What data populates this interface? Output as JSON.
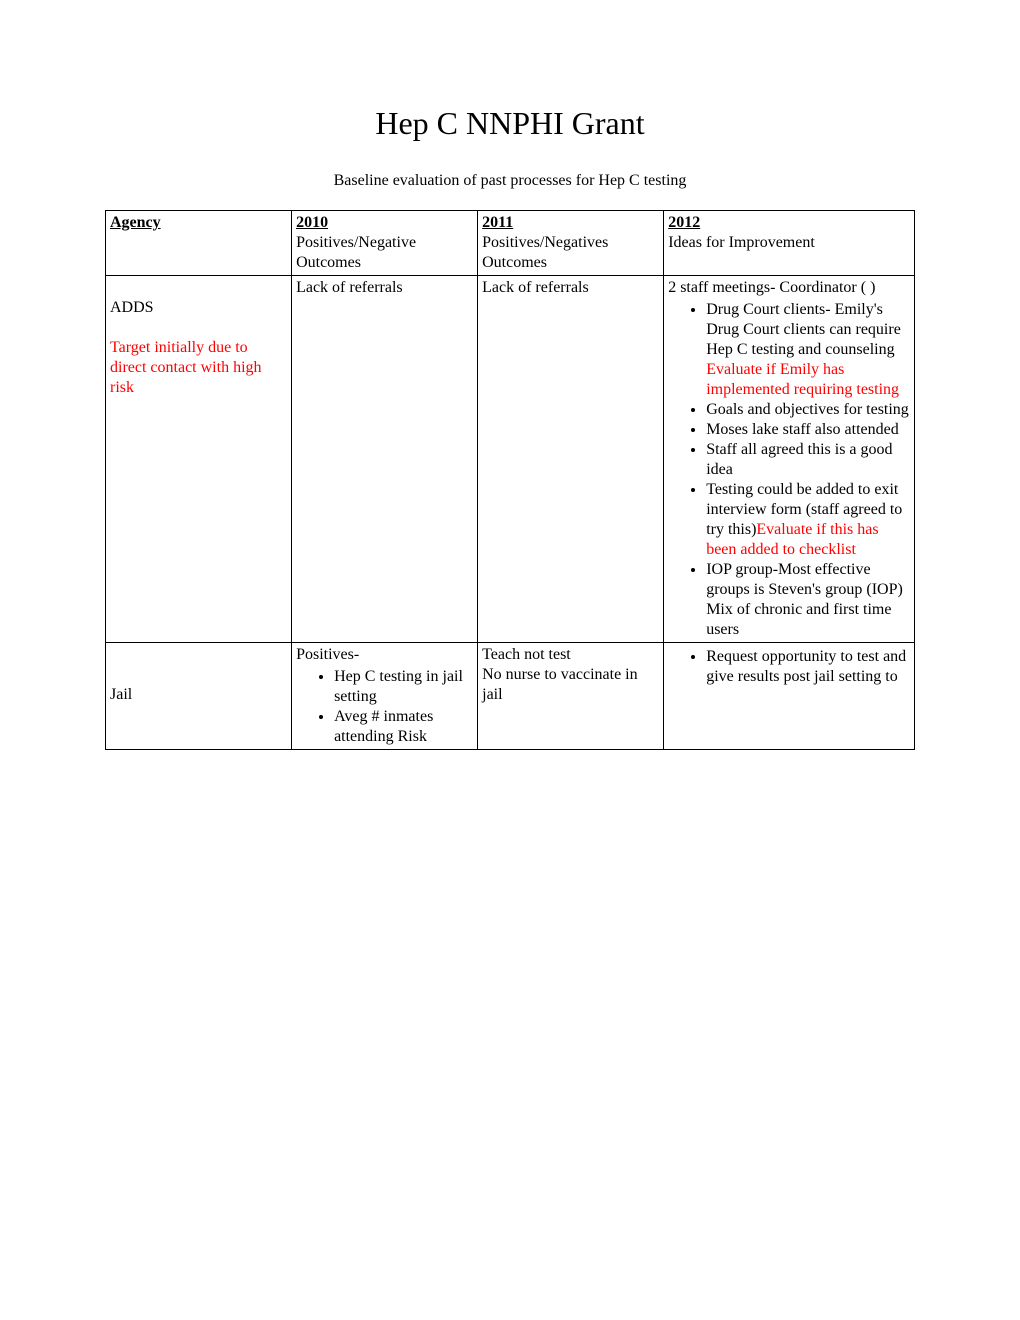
{
  "title": "Hep C NNPHI Grant",
  "subtitle": "Baseline evaluation of past processes for Hep C testing",
  "colors": {
    "text_black": "#000000",
    "text_red": "#ff0000",
    "background": "#ffffff",
    "border": "#000000"
  },
  "typography": {
    "title_fontsize": 32,
    "body_fontsize": 16,
    "font_family": "Times New Roman"
  },
  "headers": {
    "agency": "Agency",
    "col2010_label": "2010",
    "col2010_sub": "Positives/Negative Outcomes",
    "col2011_label": "2011",
    "col2011_sub": "Positives/Negatives Outcomes",
    "col2012_label": "2012",
    "col2012_sub": "Ideas for Improvement"
  },
  "rows": {
    "adds": {
      "agency_name": "ADDS",
      "agency_note": "Target initially due to direct contact with high risk",
      "c2010": "Lack of referrals",
      "c2011": "Lack of referrals",
      "c2012_intro": "2 staff meetings- Coordinator (  )",
      "bullets": [
        {
          "pre": "Drug Court clients- Emily's Drug Court clients can require Hep C testing and counseling ",
          "red": "Evaluate if Emily has implemented requiring testing"
        },
        {
          "pre": "Goals and objectives for testing"
        },
        {
          "pre": "Moses lake staff also attended"
        },
        {
          "pre": "Staff all agreed this is a good idea"
        },
        {
          "pre": "Testing could be added to exit interview form (staff agreed to try this)",
          "red": "Evaluate if this has been added to checklist"
        },
        {
          "pre": "IOP group-Most effective groups is Steven's group (IOP) Mix of chronic and first time users"
        }
      ]
    },
    "jail": {
      "agency_name": "Jail",
      "c2010_intro": "Positives-",
      "c2010_bullets": [
        "Hep C testing in jail setting",
        "Aveg # inmates attending Risk"
      ],
      "c2011": "Teach not test\nNo nurse to vaccinate in jail",
      "c2012_bullets": [
        "Request opportunity to test and give results post jail setting to"
      ]
    }
  }
}
